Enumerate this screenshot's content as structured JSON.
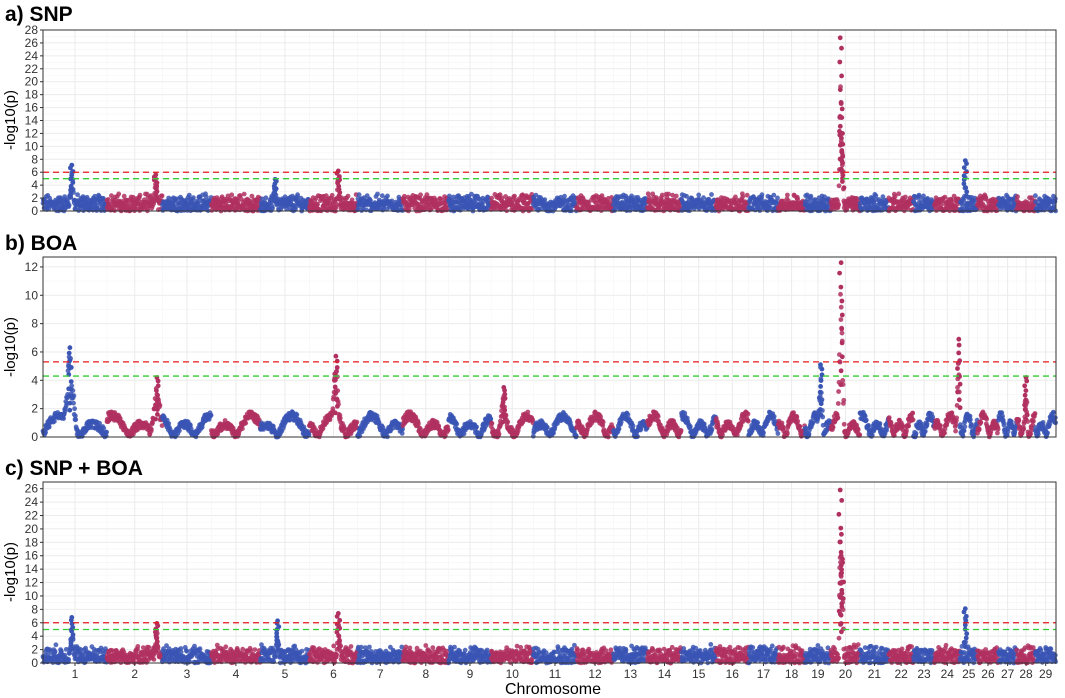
{
  "chart_data": [
    {
      "type": "scatter",
      "title": "a) SNP",
      "ylabel": "-log10(p)",
      "xlabel": "",
      "ylim": [
        0,
        28
      ],
      "yticks": [
        0,
        2,
        4,
        6,
        8,
        10,
        12,
        14,
        16,
        18,
        20,
        22,
        24,
        26,
        28
      ],
      "grid": true,
      "thresholds": [
        {
          "value": 6.0,
          "color": "#e41a1c"
        },
        {
          "value": 5.0,
          "color": "#33cc33"
        }
      ],
      "peaks": [
        {
          "chromosome": "1",
          "pos": 0.45,
          "value": 7.1
        },
        {
          "chromosome": "2",
          "pos": 0.88,
          "value": 5.6
        },
        {
          "chromosome": "5",
          "pos": 0.3,
          "value": 4.9
        },
        {
          "chromosome": "6",
          "pos": 0.6,
          "value": 6.2
        },
        {
          "chromosome": "20",
          "pos": 0.32,
          "value": 26.8
        },
        {
          "chromosome": "20",
          "pos": 0.35,
          "value": 16.8
        },
        {
          "chromosome": "20",
          "pos": 0.4,
          "value": 12.0
        },
        {
          "chromosome": "25",
          "pos": 0.3,
          "value": 7.8
        }
      ]
    },
    {
      "type": "scatter",
      "title": "b) BOA",
      "ylabel": "-log10(p)",
      "xlabel": "",
      "ylim": [
        0,
        12.7
      ],
      "yticks": [
        0,
        2,
        4,
        6,
        8,
        10,
        12
      ],
      "grid": true,
      "thresholds": [
        {
          "value": 5.3,
          "color": "#e41a1c"
        },
        {
          "value": 4.3,
          "color": "#33cc33"
        }
      ],
      "peaks": [
        {
          "chromosome": "1",
          "pos": 0.42,
          "value": 6.3
        },
        {
          "chromosome": "2",
          "pos": 0.9,
          "value": 4.2
        },
        {
          "chromosome": "6",
          "pos": 0.55,
          "value": 5.7
        },
        {
          "chromosome": "10",
          "pos": 0.3,
          "value": 3.5
        },
        {
          "chromosome": "19",
          "pos": 0.6,
          "value": 5.1
        },
        {
          "chromosome": "20",
          "pos": 0.35,
          "value": 12.3
        },
        {
          "chromosome": "24",
          "pos": 0.95,
          "value": 6.9
        },
        {
          "chromosome": "28",
          "pos": 0.5,
          "value": 4.2
        }
      ]
    },
    {
      "type": "scatter",
      "title": "c) SNP + BOA",
      "ylabel": "-log10(p)",
      "xlabel": "Chromosome",
      "ylim": [
        0,
        27
      ],
      "yticks": [
        0,
        2,
        4,
        6,
        8,
        10,
        12,
        14,
        16,
        18,
        20,
        22,
        24,
        26
      ],
      "grid": true,
      "thresholds": [
        {
          "value": 6.0,
          "color": "#e41a1c"
        },
        {
          "value": 5.0,
          "color": "#33cc33"
        }
      ],
      "peaks": [
        {
          "chromosome": "1",
          "pos": 0.45,
          "value": 6.8
        },
        {
          "chromosome": "2",
          "pos": 0.9,
          "value": 5.9
        },
        {
          "chromosome": "5",
          "pos": 0.35,
          "value": 6.3
        },
        {
          "chromosome": "6",
          "pos": 0.6,
          "value": 7.4
        },
        {
          "chromosome": "20",
          "pos": 0.32,
          "value": 25.8
        },
        {
          "chromosome": "20",
          "pos": 0.36,
          "value": 19.2
        },
        {
          "chromosome": "20",
          "pos": 0.4,
          "value": 15.5
        },
        {
          "chromosome": "25",
          "pos": 0.3,
          "value": 8.1
        }
      ]
    }
  ],
  "chromosomes": [
    "1",
    "2",
    "3",
    "4",
    "5",
    "6",
    "7",
    "8",
    "9",
    "10",
    "11",
    "12",
    "13",
    "14",
    "15",
    "16",
    "17",
    "18",
    "19",
    "20",
    "21",
    "22",
    "23",
    "24",
    "25",
    "26",
    "27",
    "28",
    "29"
  ],
  "chromosome_widths": [
    158,
    137,
    121,
    121,
    121,
    119,
    112,
    113,
    105,
    104,
    107,
    91,
    84,
    84,
    85,
    81,
    73,
    66,
    64,
    72,
    71,
    61,
    52,
    63,
    43,
    52,
    45,
    46,
    51
  ],
  "colors": {
    "odd_chromosome": "#3a55b4",
    "even_chromosome": "#b03060",
    "threshold_red": "#e41a1c",
    "threshold_green": "#33cc33"
  }
}
